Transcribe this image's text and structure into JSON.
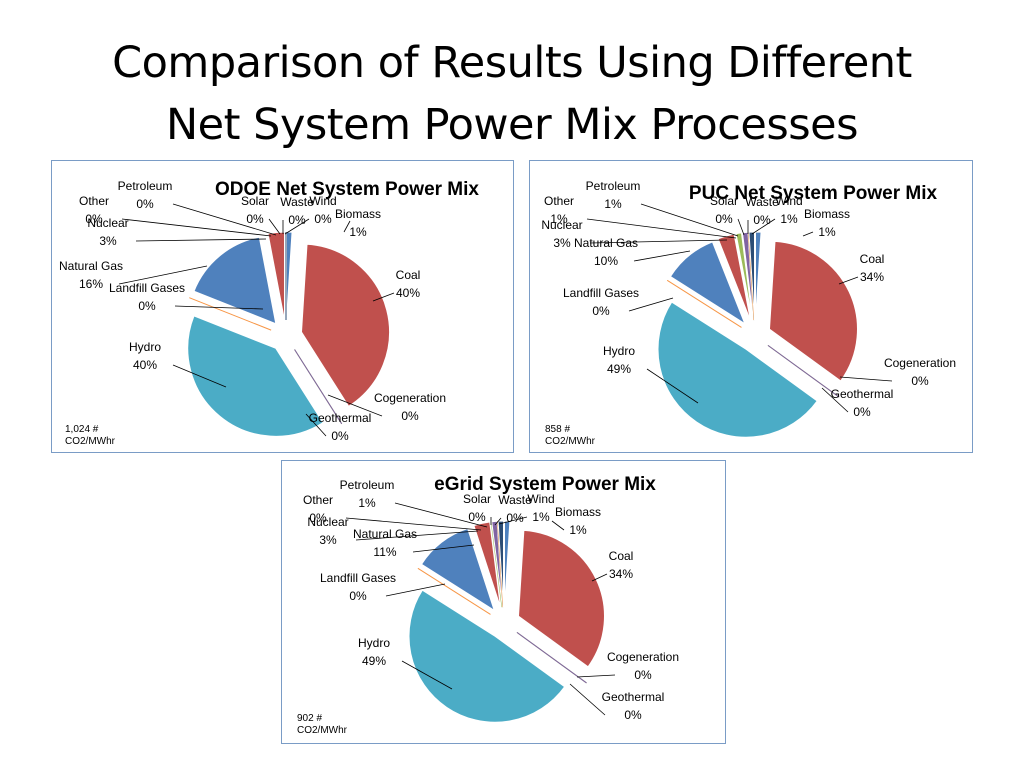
{
  "slide": {
    "title_line1": "Comparison of Results Using Different",
    "title_line2": "Net System Power Mix Processes"
  },
  "chart_data": [
    {
      "type": "pie",
      "title": "ODOE Net System Power Mix",
      "note_line1": "1,024 #",
      "note_line2": "CO2/MWhr",
      "slices": [
        {
          "name": "Biomass",
          "value": 1,
          "label": "1%",
          "color": "#4f81bd"
        },
        {
          "name": "Coal",
          "value": 40,
          "label": "40%",
          "color": "#c0504d"
        },
        {
          "name": "Cogeneration",
          "value": 0,
          "label": "0%",
          "color": "#9bbb59"
        },
        {
          "name": "Geothermal",
          "value": 0,
          "label": "0%",
          "color": "#8064a2"
        },
        {
          "name": "Hydro",
          "value": 40,
          "label": "40%",
          "color": "#4bacc6"
        },
        {
          "name": "Landfill Gases",
          "value": 0,
          "label": "0%",
          "color": "#f79646"
        },
        {
          "name": "Natural Gas",
          "value": 16,
          "label": "16%",
          "color": "#4f81bd"
        },
        {
          "name": "Nuclear",
          "value": 3,
          "label": "3%",
          "color": "#c0504d"
        },
        {
          "name": "Other",
          "value": 0,
          "label": "0%",
          "color": "#9bbb59"
        },
        {
          "name": "Petroleum",
          "value": 0,
          "label": "0%",
          "color": "#8064a2"
        },
        {
          "name": "Solar",
          "value": 0,
          "label": "0%",
          "color": "#4bacc6"
        },
        {
          "name": "Waste",
          "value": 0,
          "label": "0%",
          "color": "#f79646"
        },
        {
          "name": "Wind",
          "value": 0,
          "label": "0%",
          "color": "#2c4d75"
        }
      ]
    },
    {
      "type": "pie",
      "title": "PUC Net System Power Mix",
      "note_line1": "858 #",
      "note_line2": "CO2/MWhr",
      "slices": [
        {
          "name": "Biomass",
          "value": 1,
          "label": "1%",
          "color": "#4f81bd"
        },
        {
          "name": "Coal",
          "value": 34,
          "label": "34%",
          "color": "#c0504d"
        },
        {
          "name": "Cogeneration",
          "value": 0,
          "label": "0%",
          "color": "#9bbb59"
        },
        {
          "name": "Geothermal",
          "value": 0,
          "label": "0%",
          "color": "#8064a2"
        },
        {
          "name": "Hydro",
          "value": 49,
          "label": "49%",
          "color": "#4bacc6"
        },
        {
          "name": "Landfill Gases",
          "value": 0,
          "label": "0%",
          "color": "#f79646"
        },
        {
          "name": "Natural Gas",
          "value": 10,
          "label": "10%",
          "color": "#4f81bd"
        },
        {
          "name": "Nuclear",
          "value": 3,
          "label": "3%",
          "color": "#c0504d"
        },
        {
          "name": "Other",
          "value": 1,
          "label": "1%",
          "color": "#9bbb59"
        },
        {
          "name": "Petroleum",
          "value": 1,
          "label": "1%",
          "color": "#8064a2"
        },
        {
          "name": "Solar",
          "value": 0,
          "label": "0%",
          "color": "#4bacc6"
        },
        {
          "name": "Waste",
          "value": 0,
          "label": "0%",
          "color": "#f79646"
        },
        {
          "name": "Wind",
          "value": 1,
          "label": "1%",
          "color": "#2c4d75"
        }
      ]
    },
    {
      "type": "pie",
      "title": "eGrid System Power Mix",
      "note_line1": "902 #",
      "note_line2": "CO2/MWhr",
      "slices": [
        {
          "name": "Biomass",
          "value": 1,
          "label": "1%",
          "color": "#4f81bd"
        },
        {
          "name": "Coal",
          "value": 34,
          "label": "34%",
          "color": "#c0504d"
        },
        {
          "name": "Cogeneration",
          "value": 0,
          "label": "0%",
          "color": "#9bbb59"
        },
        {
          "name": "Geothermal",
          "value": 0,
          "label": "0%",
          "color": "#8064a2"
        },
        {
          "name": "Hydro",
          "value": 49,
          "label": "49%",
          "color": "#4bacc6"
        },
        {
          "name": "Landfill Gases",
          "value": 0,
          "label": "0%",
          "color": "#f79646"
        },
        {
          "name": "Natural Gas",
          "value": 11,
          "label": "11%",
          "color": "#4f81bd"
        },
        {
          "name": "Nuclear",
          "value": 3,
          "label": "3%",
          "color": "#c0504d"
        },
        {
          "name": "Other",
          "value": 0,
          "label": "0%",
          "color": "#9bbb59"
        },
        {
          "name": "Petroleum",
          "value": 1,
          "label": "1%",
          "color": "#8064a2"
        },
        {
          "name": "Solar",
          "value": 0,
          "label": "0%",
          "color": "#4bacc6"
        },
        {
          "name": "Waste",
          "value": 0,
          "label": "0%",
          "color": "#f79646"
        },
        {
          "name": "Wind",
          "value": 1,
          "label": "1%",
          "color": "#2c4d75"
        }
      ]
    }
  ]
}
